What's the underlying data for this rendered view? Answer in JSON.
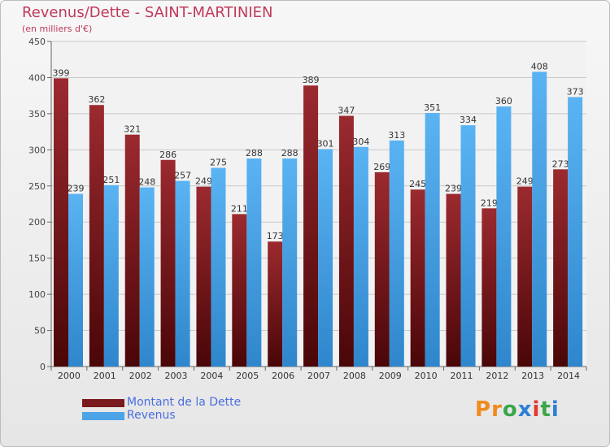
{
  "title": "Revenus/Dette - SAINT-MARTINIEN",
  "subtitle": "(en milliers d'€)",
  "colors": {
    "debt": "#7a1a1f",
    "revenue": "#4ca3e6",
    "title": "#c0395a",
    "axis": "#555555"
  },
  "legend": [
    {
      "label": "Montant de la Dette",
      "color": "#7a1a1f"
    },
    {
      "label": "Revenus",
      "color": "#4ca3e6"
    }
  ],
  "logo": {
    "text": "Proxiti"
  },
  "chart_data": {
    "type": "bar",
    "categories": [
      "2000",
      "2001",
      "2002",
      "2003",
      "2004",
      "2005",
      "2006",
      "2007",
      "2008",
      "2009",
      "2010",
      "2011",
      "2012",
      "2013",
      "2014"
    ],
    "series": [
      {
        "name": "Montant de la Dette",
        "values": [
          399,
          362,
          321,
          286,
          249,
          211,
          173,
          389,
          347,
          269,
          245,
          239,
          219,
          249,
          273
        ]
      },
      {
        "name": "Revenus",
        "values": [
          239,
          251,
          248,
          257,
          275,
          288,
          288,
          301,
          304,
          313,
          351,
          334,
          360,
          408,
          373
        ]
      }
    ],
    "ylim": [
      0,
      450
    ],
    "yticks": [
      0,
      50,
      100,
      150,
      200,
      250,
      300,
      350,
      400,
      450
    ],
    "grid": true,
    "legend_position": "bottom-left"
  }
}
